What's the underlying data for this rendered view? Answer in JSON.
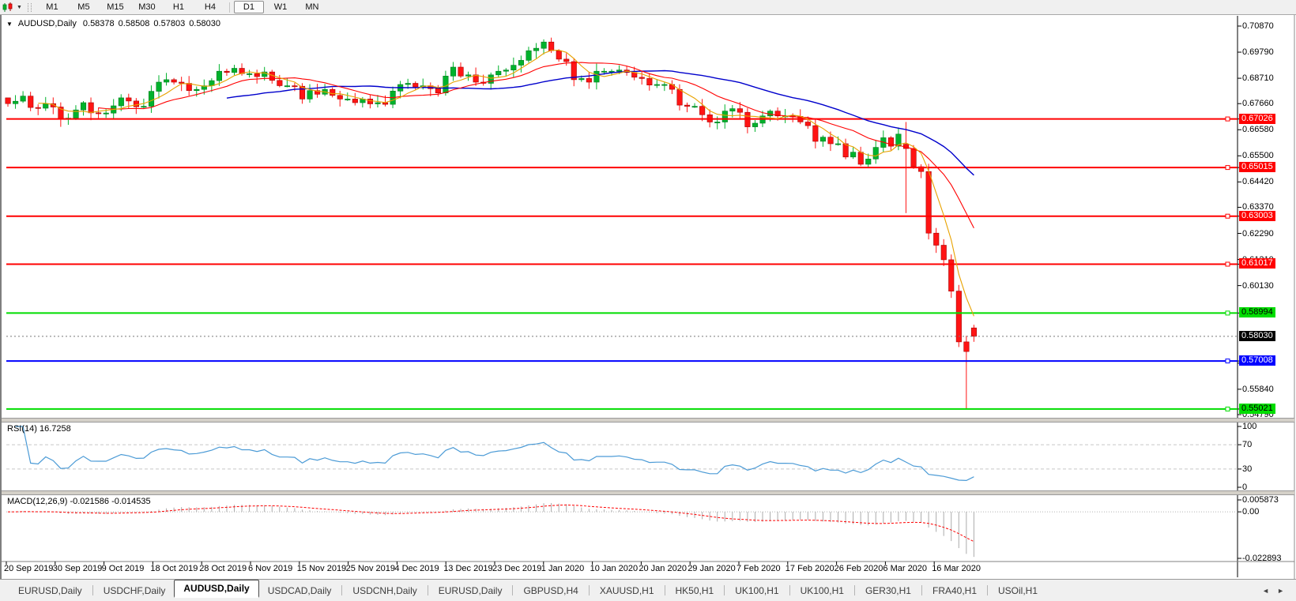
{
  "toolbar": {
    "timeframes": [
      "M1",
      "M5",
      "M15",
      "M30",
      "H1",
      "H4",
      "D1",
      "W1",
      "MN"
    ],
    "active_timeframe": "D1"
  },
  "chart_header": {
    "dropdown_glyph": "▼",
    "symbol": "AUDUSD,Daily",
    "open": "0.58378",
    "high": "0.58508",
    "low": "0.57803",
    "close": "0.58030"
  },
  "price_axis": {
    "ticks": [
      "0.70870",
      "0.69790",
      "0.68710",
      "0.67660",
      "0.66580",
      "0.65500",
      "0.64420",
      "0.63370",
      "0.62290",
      "0.61210",
      "0.60130",
      "0.56920",
      "0.55840",
      "0.54790"
    ],
    "line_labels": [
      {
        "value": "0.67026",
        "color": "#FF0000",
        "text_color": "#FFFFFF"
      },
      {
        "value": "0.65015",
        "color": "#FF0000",
        "text_color": "#FFFFFF"
      },
      {
        "value": "0.63003",
        "color": "#FF0000",
        "text_color": "#FFFFFF"
      },
      {
        "value": "0.61017",
        "color": "#FF0000",
        "text_color": "#FFFFFF"
      },
      {
        "value": "0.58994",
        "color": "#00DD00",
        "text_color": "#000000"
      },
      {
        "value": "0.57008",
        "color": "#0000FF",
        "text_color": "#FFFFFF"
      },
      {
        "value": "0.55021",
        "color": "#00DD00",
        "text_color": "#000000"
      }
    ],
    "current_price_label": {
      "value": "0.58030",
      "color": "#000000",
      "text_color": "#FFFFFF"
    }
  },
  "indicators": {
    "rsi": {
      "label": "RSI(14) 16.7258",
      "ticks": [
        "100",
        "70",
        "30",
        "0"
      ],
      "line_color": "#4C9BD6",
      "gridlines": [
        70,
        30
      ]
    },
    "macd": {
      "label": "MACD(12,26,9) -0.021586 -0.014535",
      "ticks": [
        "0.005873",
        "0.00",
        "-0.022893"
      ],
      "histogram_color": "#ABABAB",
      "signal_color": "#FF0000"
    }
  },
  "chart_data": {
    "type": "candlestick",
    "symbol": "AUDUSD",
    "timeframe": "Daily",
    "visible_range": {
      "price_top": 0.7087,
      "price_bottom": 0.5479,
      "date_start": "20 Sep 2019",
      "date_end": "16 Mar 2020"
    },
    "current_price": 0.5803,
    "horizontal_lines": [
      {
        "price": 0.67026,
        "color": "#FF0000"
      },
      {
        "price": 0.65015,
        "color": "#FF0000"
      },
      {
        "price": 0.63003,
        "color": "#FF0000"
      },
      {
        "price": 0.61017,
        "color": "#FF0000"
      },
      {
        "price": 0.58994,
        "color": "#00DD00"
      },
      {
        "price": 0.57008,
        "color": "#0000FF"
      },
      {
        "price": 0.55021,
        "color": "#00DD00"
      }
    ],
    "closes": [
      0.6766,
      0.6776,
      0.6797,
      0.675,
      0.6747,
      0.6766,
      0.6752,
      0.6704,
      0.6706,
      0.674,
      0.677,
      0.6728,
      0.6727,
      0.6727,
      0.6757,
      0.679,
      0.6777,
      0.6753,
      0.6755,
      0.6817,
      0.6855,
      0.6865,
      0.6855,
      0.685,
      0.682,
      0.6825,
      0.684,
      0.6861,
      0.69,
      0.6895,
      0.6912,
      0.689,
      0.689,
      0.6878,
      0.6897,
      0.6862,
      0.684,
      0.684,
      0.6838,
      0.6785,
      0.682,
      0.6805,
      0.6825,
      0.68,
      0.6785,
      0.6785,
      0.677,
      0.6785,
      0.6765,
      0.677,
      0.6763,
      0.6818,
      0.6845,
      0.685,
      0.6835,
      0.684,
      0.6828,
      0.681,
      0.688,
      0.6917,
      0.688,
      0.6885,
      0.6855,
      0.685,
      0.6885,
      0.69,
      0.6905,
      0.6925,
      0.6945,
      0.6985,
      0.6995,
      0.7021,
      0.6985,
      0.695,
      0.694,
      0.6865,
      0.687,
      0.6855,
      0.69,
      0.69,
      0.69,
      0.6905,
      0.6895,
      0.6875,
      0.687,
      0.6843,
      0.6845,
      0.6845,
      0.6825,
      0.676,
      0.6755,
      0.6755,
      0.672,
      0.669,
      0.669,
      0.6735,
      0.6745,
      0.673,
      0.667,
      0.6685,
      0.6715,
      0.6735,
      0.6715,
      0.6715,
      0.6713,
      0.669,
      0.6675,
      0.661,
      0.6627,
      0.66,
      0.66,
      0.6545,
      0.6565,
      0.6515,
      0.6537,
      0.6585,
      0.6625,
      0.659,
      0.664,
      0.658,
      0.6505,
      0.6485,
      0.623,
      0.618,
      0.612,
      0.599,
      0.578,
      0.574,
      0.5803
    ],
    "overrides": {
      "0": {
        "o": 0.679
      },
      "7": {
        "l": 0.667
      },
      "71": {
        "h": 0.7032
      },
      "119": {
        "o": 0.6598,
        "h": 0.669,
        "l": 0.6313
      },
      "127": {
        "h": 0.5805,
        "l": 0.5502
      },
      "128": {
        "o": 0.58378,
        "h": 0.58508,
        "l": 0.57803,
        "c": 0.5803
      }
    },
    "up_color": "#00B22C",
    "down_color": "#FF1414",
    "ma_colors": [
      "#E8A200",
      "#FF0000",
      "#0000CC"
    ]
  },
  "date_axis": {
    "labels": [
      "20 Sep 2019",
      "30 Sep 2019",
      "9 Oct 2019",
      "18 Oct 2019",
      "28 Oct 2019",
      "6 Nov 2019",
      "15 Nov 2019",
      "25 Nov 2019",
      "4 Dec 2019",
      "13 Dec 2019",
      "23 Dec 2019",
      "1 Jan 2020",
      "10 Jan 2020",
      "20 Jan 2020",
      "29 Jan 2020",
      "7 Feb 2020",
      "17 Feb 2020",
      "26 Feb 2020",
      "6 Mar 2020",
      "16 Mar 2020"
    ]
  },
  "tab_bar": {
    "tabs": [
      "EURUSD,Daily",
      "USDCHF,Daily",
      "AUDUSD,Daily",
      "USDCAD,Daily",
      "USDCNH,Daily",
      "EURUSD,Daily",
      "GBPUSD,H4",
      "XAUUSD,H1",
      "HK50,H1",
      "UK100,H1",
      "UK100,H1",
      "GER30,H1",
      "FRA40,H1",
      "USOil,H1"
    ],
    "active_tab": "AUDUSD,Daily",
    "active_index": 2,
    "nav_left": "◄",
    "nav_right": "►"
  }
}
